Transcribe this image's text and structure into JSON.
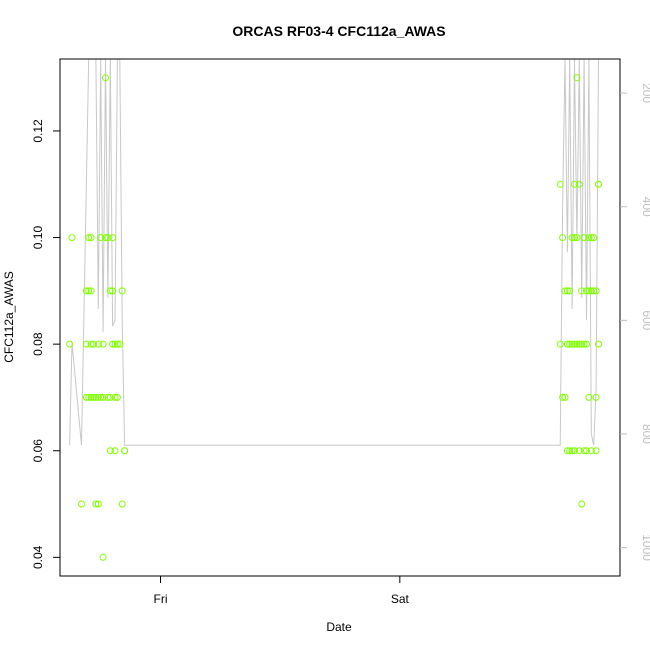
{
  "chart_data": {
    "type": "scatter",
    "title": "ORCAS RF03-4 CFC112a_AWAS",
    "xlabel": "Date",
    "ylabel": "CFC112a_AWAS",
    "x_ticks": [
      "Fri",
      "Sat"
    ],
    "y_ticks": [
      "0.04",
      "0.06",
      "0.08",
      "0.10",
      "0.12"
    ],
    "y2_ticks": [
      "200",
      "400",
      "600",
      "800",
      "1000"
    ],
    "ylim": [
      0.0365,
      0.1335
    ],
    "y2lim": [
      1050,
      140
    ],
    "xlim": [
      -0.42,
      1.92
    ],
    "x_tick_positions": [
      0,
      1
    ],
    "point_color": "#7fff00",
    "line_color": "#c8c8c8",
    "axis2_color": "#bebebe",
    "series": [
      {
        "values": [
          {
            "x": -0.38,
            "y": 0.08
          },
          {
            "x": -0.37,
            "y": 0.1
          },
          {
            "x": -0.33,
            "y": 0.05
          },
          {
            "x": -0.31,
            "y": 0.07
          },
          {
            "x": -0.31,
            "y": 0.08
          },
          {
            "x": -0.31,
            "y": 0.09
          },
          {
            "x": -0.3,
            "y": 0.1
          },
          {
            "x": -0.3,
            "y": 0.09
          },
          {
            "x": -0.3,
            "y": 0.07
          },
          {
            "x": -0.29,
            "y": 0.1
          },
          {
            "x": -0.29,
            "y": 0.09
          },
          {
            "x": -0.29,
            "y": 0.08
          },
          {
            "x": -0.29,
            "y": 0.07
          },
          {
            "x": -0.28,
            "y": 0.08
          },
          {
            "x": -0.28,
            "y": 0.07
          },
          {
            "x": -0.27,
            "y": 0.07
          },
          {
            "x": -0.27,
            "y": 0.05
          },
          {
            "x": -0.26,
            "y": 0.08
          },
          {
            "x": -0.26,
            "y": 0.07
          },
          {
            "x": -0.26,
            "y": 0.05
          },
          {
            "x": -0.25,
            "y": 0.07
          },
          {
            "x": -0.25,
            "y": 0.1
          },
          {
            "x": -0.24,
            "y": 0.08
          },
          {
            "x": -0.24,
            "y": 0.04
          },
          {
            "x": -0.24,
            "y": 0.07
          },
          {
            "x": -0.23,
            "y": 0.1
          },
          {
            "x": -0.23,
            "y": 0.13
          },
          {
            "x": -0.22,
            "y": 0.07
          },
          {
            "x": -0.22,
            "y": 0.1
          },
          {
            "x": -0.21,
            "y": 0.07
          },
          {
            "x": -0.21,
            "y": 0.09
          },
          {
            "x": -0.21,
            "y": 0.06
          },
          {
            "x": -0.2,
            "y": 0.09
          },
          {
            "x": -0.2,
            "y": 0.1
          },
          {
            "x": -0.2,
            "y": 0.08
          },
          {
            "x": -0.19,
            "y": 0.06
          },
          {
            "x": -0.19,
            "y": 0.07
          },
          {
            "x": -0.19,
            "y": 0.08
          },
          {
            "x": -0.18,
            "y": 0.07
          },
          {
            "x": -0.18,
            "y": 0.08
          },
          {
            "x": -0.17,
            "y": 0.08
          },
          {
            "x": -0.16,
            "y": 0.09
          },
          {
            "x": -0.16,
            "y": 0.05
          },
          {
            "x": -0.15,
            "y": 0.06
          },
          {
            "x": -0.15,
            "y": 0.06
          },
          {
            "x": 1.67,
            "y": 0.11
          },
          {
            "x": 1.67,
            "y": 0.08
          },
          {
            "x": 1.68,
            "y": 0.1
          },
          {
            "x": 1.68,
            "y": 0.07
          },
          {
            "x": 1.69,
            "y": 0.07
          },
          {
            "x": 1.69,
            "y": 0.09
          },
          {
            "x": 1.7,
            "y": 0.06
          },
          {
            "x": 1.7,
            "y": 0.08
          },
          {
            "x": 1.7,
            "y": 0.09
          },
          {
            "x": 1.71,
            "y": 0.08
          },
          {
            "x": 1.71,
            "y": 0.09
          },
          {
            "x": 1.71,
            "y": 0.06
          },
          {
            "x": 1.72,
            "y": 0.08
          },
          {
            "x": 1.72,
            "y": 0.1
          },
          {
            "x": 1.72,
            "y": 0.06
          },
          {
            "x": 1.73,
            "y": 0.1
          },
          {
            "x": 1.73,
            "y": 0.08
          },
          {
            "x": 1.73,
            "y": 0.11
          },
          {
            "x": 1.73,
            "y": 0.06
          },
          {
            "x": 1.74,
            "y": 0.13
          },
          {
            "x": 1.74,
            "y": 0.1
          },
          {
            "x": 1.74,
            "y": 0.08
          },
          {
            "x": 1.75,
            "y": 0.11
          },
          {
            "x": 1.75,
            "y": 0.08
          },
          {
            "x": 1.75,
            "y": 0.06
          },
          {
            "x": 1.76,
            "y": 0.05
          },
          {
            "x": 1.76,
            "y": 0.09
          },
          {
            "x": 1.76,
            "y": 0.08
          },
          {
            "x": 1.77,
            "y": 0.1
          },
          {
            "x": 1.77,
            "y": 0.06
          },
          {
            "x": 1.77,
            "y": 0.08
          },
          {
            "x": 1.78,
            "y": 0.09
          },
          {
            "x": 1.78,
            "y": 0.06
          },
          {
            "x": 1.78,
            "y": 0.08
          },
          {
            "x": 1.79,
            "y": 0.1
          },
          {
            "x": 1.79,
            "y": 0.07
          },
          {
            "x": 1.79,
            "y": 0.09
          },
          {
            "x": 1.8,
            "y": 0.1
          },
          {
            "x": 1.8,
            "y": 0.06
          },
          {
            "x": 1.8,
            "y": 0.09
          },
          {
            "x": 1.81,
            "y": 0.1
          },
          {
            "x": 1.81,
            "y": 0.09
          },
          {
            "x": 1.82,
            "y": 0.07
          },
          {
            "x": 1.82,
            "y": 0.09
          },
          {
            "x": 1.82,
            "y": 0.06
          },
          {
            "x": 1.83,
            "y": 0.11
          },
          {
            "x": 1.83,
            "y": 0.08
          },
          {
            "x": 1.83,
            "y": 0.11
          }
        ]
      },
      {
        "axis": "right",
        "values": [
          {
            "x": -0.38,
            "y": 820
          },
          {
            "x": -0.37,
            "y": 640
          },
          {
            "x": -0.33,
            "y": 820
          },
          {
            "x": -0.3,
            "y": 140
          },
          {
            "x": -0.29,
            "y": 140
          },
          {
            "x": -0.27,
            "y": 140
          },
          {
            "x": -0.26,
            "y": 580
          },
          {
            "x": -0.25,
            "y": 140
          },
          {
            "x": -0.24,
            "y": 620
          },
          {
            "x": -0.23,
            "y": 140
          },
          {
            "x": -0.22,
            "y": 560
          },
          {
            "x": -0.21,
            "y": 140
          },
          {
            "x": -0.2,
            "y": 610
          },
          {
            "x": -0.19,
            "y": 600
          },
          {
            "x": -0.18,
            "y": 140
          },
          {
            "x": -0.17,
            "y": 140
          },
          {
            "x": -0.16,
            "y": 600
          },
          {
            "x": -0.15,
            "y": 820
          },
          {
            "x": -0.14,
            "y": 820
          },
          {
            "x": 1.67,
            "y": 820
          },
          {
            "x": 1.68,
            "y": 400
          },
          {
            "x": 1.69,
            "y": 140
          },
          {
            "x": 1.7,
            "y": 480
          },
          {
            "x": 1.71,
            "y": 140
          },
          {
            "x": 1.72,
            "y": 580
          },
          {
            "x": 1.73,
            "y": 140
          },
          {
            "x": 1.74,
            "y": 460
          },
          {
            "x": 1.75,
            "y": 140
          },
          {
            "x": 1.76,
            "y": 560
          },
          {
            "x": 1.77,
            "y": 140
          },
          {
            "x": 1.78,
            "y": 600
          },
          {
            "x": 1.79,
            "y": 140
          },
          {
            "x": 1.8,
            "y": 800
          },
          {
            "x": 1.81,
            "y": 820
          },
          {
            "x": 1.82,
            "y": 720
          },
          {
            "x": 1.83,
            "y": 140
          }
        ]
      }
    ]
  }
}
